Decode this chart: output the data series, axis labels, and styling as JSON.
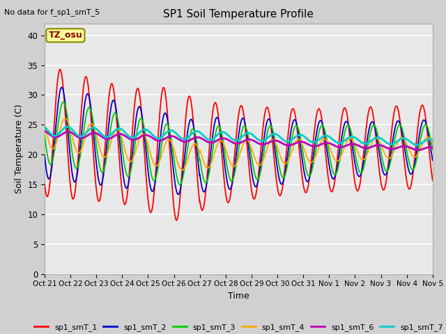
{
  "title": "SP1 Soil Temperature Profile",
  "xlabel": "Time",
  "ylabel": "Soil Temperature (C)",
  "no_data_text": "No data for f_sp1_smT_5",
  "tz_label": "TZ_osu",
  "ylim": [
    0,
    42
  ],
  "yticks": [
    0,
    5,
    10,
    15,
    20,
    25,
    30,
    35,
    40
  ],
  "xtick_labels": [
    "Oct 21",
    "Oct 22",
    "Oct 23",
    "Oct 24",
    "Oct 25",
    "Oct 26",
    "Oct 27",
    "Oct 28",
    "Oct 29",
    "Oct 30",
    "Oct 31",
    "Nov 1",
    "Nov 2",
    "Nov 3",
    "Nov 4",
    "Nov 5"
  ],
  "fig_bg": "#d0d0d0",
  "plot_bg": "#e8e8e8",
  "series": [
    {
      "name": "sp1_smT_1",
      "color": "#ff0000"
    },
    {
      "name": "sp1_smT_2",
      "color": "#0000cc"
    },
    {
      "name": "sp1_smT_3",
      "color": "#00cc00"
    },
    {
      "name": "sp1_smT_4",
      "color": "#ffaa00"
    },
    {
      "name": "sp1_smT_6",
      "color": "#bb00bb"
    },
    {
      "name": "sp1_smT_7",
      "color": "#00cccc"
    }
  ],
  "num_days": 15,
  "pts_per_day": 120
}
